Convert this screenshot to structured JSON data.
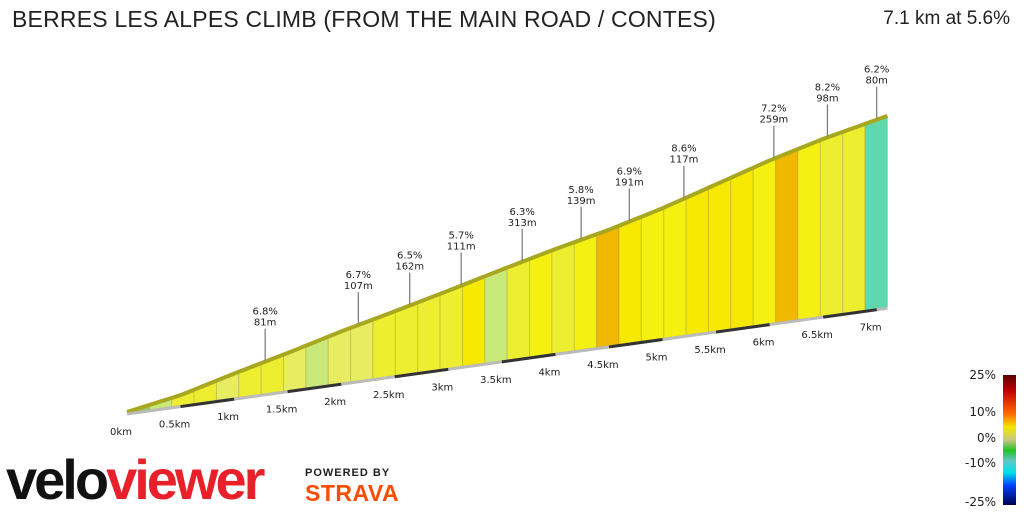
{
  "header": {
    "title": "BERRES LES ALPES CLIMB (FROM THE MAIN ROAD / CONTES)",
    "summary": "7.1 km at 5.6%"
  },
  "logo": {
    "velo": "velo",
    "viewer": "viewer",
    "powered_by": "POWERED BY",
    "strava": "STRAVA"
  },
  "chart_data": {
    "type": "area",
    "title": "BERRES LES ALPES CLIMB (FROM THE MAIN ROAD / CONTES)",
    "x_ticks": [
      "0km",
      "0.5km",
      "1km",
      "1.5km",
      "2km",
      "2.5km",
      "3km",
      "3.5km",
      "4km",
      "4.5km",
      "5km",
      "5.5km",
      "6km",
      "6.5km",
      "7km"
    ],
    "x_tick_values": [
      0,
      0.5,
      1,
      1.5,
      2,
      2.5,
      3,
      3.5,
      4,
      4.5,
      5,
      5.5,
      6,
      6.5,
      7
    ],
    "xlim": [
      0,
      7.1
    ],
    "profile": [
      [
        0,
        0
      ],
      [
        0.5,
        20
      ],
      [
        1,
        50
      ],
      [
        1.5,
        78
      ],
      [
        2,
        108
      ],
      [
        2.5,
        135
      ],
      [
        3,
        163
      ],
      [
        3.5,
        192
      ],
      [
        4,
        220
      ],
      [
        4.5,
        245
      ],
      [
        5,
        275
      ],
      [
        5.5,
        310
      ],
      [
        6,
        345
      ],
      [
        6.5,
        375
      ],
      [
        7,
        400
      ],
      [
        7.1,
        405
      ]
    ],
    "segment_gradients": [
      3,
      4,
      6,
      6.5,
      5.5,
      6,
      6,
      5.5,
      5,
      5.5,
      5.8,
      6,
      6.3,
      6.5,
      6.2,
      7.4,
      5.2,
      6.4,
      6.9,
      6.5,
      7,
      8.6,
      7.5,
      6.8,
      7,
      7.2,
      7.5,
      7.3,
      6.8,
      8.2,
      7,
      6.2,
      6.5,
      -2
    ],
    "annotations": [
      {
        "grade": "6.8%",
        "length": "81m",
        "km": 1.29
      },
      {
        "grade": "6.7%",
        "length": "107m",
        "km": 2.16
      },
      {
        "grade": "6.5%",
        "length": "162m",
        "km": 2.64
      },
      {
        "grade": "5.7%",
        "length": "111m",
        "km": 3.12
      },
      {
        "grade": "6.3%",
        "length": "313m",
        "km": 3.69
      },
      {
        "grade": "5.8%",
        "length": "139m",
        "km": 4.24
      },
      {
        "grade": "6.9%",
        "length": "191m",
        "km": 4.69
      },
      {
        "grade": "8.6%",
        "length": "117m",
        "km": 5.2
      },
      {
        "grade": "7.2%",
        "length": "259m",
        "km": 6.04
      },
      {
        "grade": "8.2%",
        "length": "98m",
        "km": 6.54
      },
      {
        "grade": "6.2%",
        "length": "80m",
        "km": 7.0
      }
    ],
    "legend": {
      "labels": [
        "25%",
        "10%",
        "0%",
        "-10%",
        "-25%"
      ],
      "values": [
        25,
        10,
        0,
        -10,
        -25
      ],
      "placement": "bottom-right"
    }
  }
}
